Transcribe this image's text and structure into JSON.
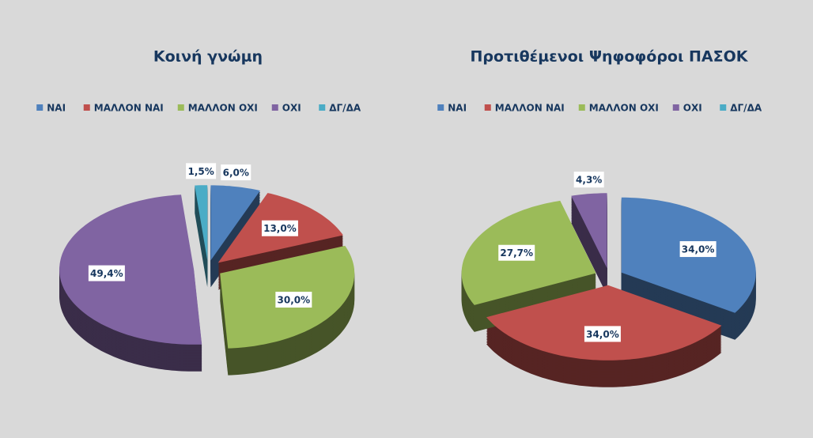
{
  "chart_data": [
    {
      "type": "pie",
      "title": "Κοινή γνώμη",
      "categories": [
        "ΝΑΙ",
        "ΜΑΛΛΟΝ ΝΑΙ",
        "ΜΑΛΛΟΝ ΟΧΙ",
        "ΟΧΙ",
        "ΔΓ/ΔΑ"
      ],
      "values": [
        6.0,
        13.0,
        30.0,
        49.4,
        1.5
      ],
      "value_labels": [
        "6,0%",
        "13,0%",
        "30,0%",
        "49,4%",
        "1,5%"
      ],
      "colors": [
        "#4f81bd",
        "#c0504d",
        "#9bbb59",
        "#8064a2",
        "#4bacc6"
      ],
      "legend": "top"
    },
    {
      "type": "pie",
      "title": "Προτιθέμενοι Ψηφοφόροι ΠΑΣΟΚ",
      "categories": [
        "ΝΑΙ",
        "ΜΑΛΛΟΝ ΝΑΙ",
        "ΜΑΛΛΟΝ ΟΧΙ",
        "ΟΧΙ",
        "ΔΓ/ΔΑ"
      ],
      "values": [
        34.0,
        34.0,
        27.7,
        4.3,
        0
      ],
      "value_labels": [
        "34,0%",
        "34,0%",
        "27,7%",
        "4,3%",
        null
      ],
      "colors": [
        "#4f81bd",
        "#c0504d",
        "#9bbb59",
        "#8064a2",
        "#4bacc6"
      ],
      "legend": "top"
    }
  ]
}
